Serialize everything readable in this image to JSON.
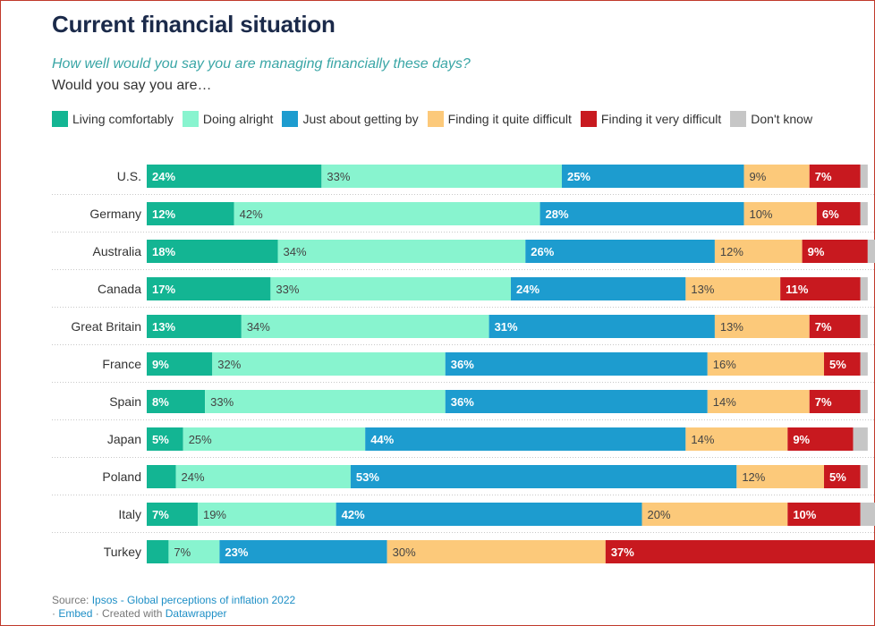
{
  "title": "Current financial situation",
  "subtitle": "How well would you say you are managing financially these days?",
  "question": "Would you say you are…",
  "chart_data": {
    "type": "bar",
    "orientation": "horizontal",
    "stacked": true,
    "percent": true,
    "categories": [
      "U.S.",
      "Germany",
      "Australia",
      "Canada",
      "Great Britain",
      "France",
      "Spain",
      "Japan",
      "Poland",
      "Italy",
      "Turkey"
    ],
    "series": [
      {
        "name": "Living comfortably",
        "color": "#13b593",
        "label_color": "#ffffff",
        "label_bold": true,
        "values": [
          24,
          12,
          18,
          17,
          13,
          9,
          8,
          5,
          4,
          7,
          3
        ],
        "labels": [
          "24%",
          "12%",
          "18%",
          "17%",
          "13%",
          "9%",
          "8%",
          "5%",
          "",
          "7%",
          ""
        ]
      },
      {
        "name": "Doing alright",
        "color": "#88f4cf",
        "label_color": "#444444",
        "label_bold": false,
        "values": [
          33,
          42,
          34,
          33,
          34,
          32,
          33,
          25,
          24,
          19,
          7
        ],
        "labels": [
          "33%",
          "42%",
          "34%",
          "33%",
          "34%",
          "32%",
          "33%",
          "25%",
          "24%",
          "19%",
          "7%"
        ]
      },
      {
        "name": "Just about getting by",
        "color": "#1d9ccf",
        "label_color": "#ffffff",
        "label_bold": true,
        "values": [
          25,
          28,
          26,
          24,
          31,
          36,
          36,
          44,
          53,
          42,
          23
        ],
        "labels": [
          "25%",
          "28%",
          "26%",
          "24%",
          "31%",
          "36%",
          "36%",
          "44%",
          "53%",
          "42%",
          "23%"
        ]
      },
      {
        "name": "Finding it quite difficult",
        "color": "#fcc97a",
        "label_color": "#444444",
        "label_bold": false,
        "values": [
          9,
          10,
          12,
          13,
          13,
          16,
          14,
          14,
          12,
          20,
          30
        ],
        "labels": [
          "9%",
          "10%",
          "12%",
          "13%",
          "13%",
          "16%",
          "14%",
          "14%",
          "12%",
          "20%",
          "30%"
        ]
      },
      {
        "name": "Finding it very difficult",
        "color": "#c8191f",
        "label_color": "#ffffff",
        "label_bold": true,
        "values": [
          7,
          6,
          9,
          11,
          7,
          5,
          7,
          9,
          5,
          10,
          37
        ],
        "labels": [
          "7%",
          "6%",
          "9%",
          "11%",
          "7%",
          "5%",
          "7%",
          "9%",
          "5%",
          "10%",
          "37%"
        ]
      },
      {
        "name": "Don't know",
        "color": "#c6c6c6",
        "label_color": "#444444",
        "label_bold": false,
        "values": [
          1,
          1,
          1,
          1,
          1,
          1,
          1,
          2,
          1,
          2,
          0
        ],
        "labels": [
          "",
          "",
          "",
          "",
          "",
          "",
          "",
          "",
          "",
          "",
          ""
        ]
      }
    ],
    "xlim": [
      0,
      100
    ],
    "grid": false,
    "legend_position": "top"
  },
  "footer": {
    "source_prefix": "Source: ",
    "source_link": "Ipsos - Global perceptions of inflation 2022",
    "embed_prefix": "· ",
    "embed": "Embed",
    "created_with": " · Created with ",
    "tool": "Datawrapper"
  }
}
